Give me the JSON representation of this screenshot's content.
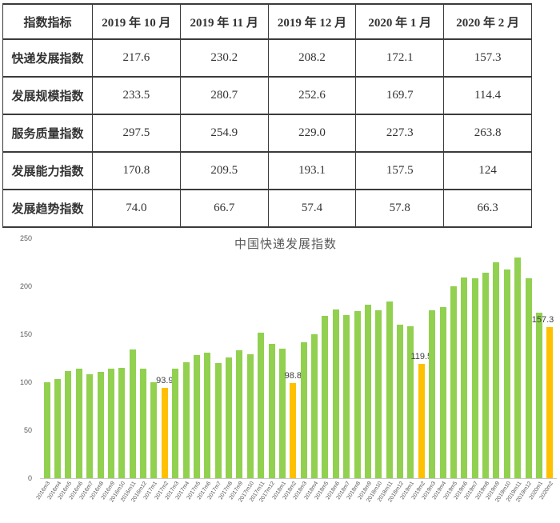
{
  "table": {
    "header": [
      "指数指标",
      "2019 年 10 月",
      "2019 年 11 月",
      "2019 年 12 月",
      "2020 年 1 月",
      "2020 年 2 月"
    ],
    "rows": [
      [
        "快递发展指数",
        "217.6",
        "230.2",
        "208.2",
        "172.1",
        "157.3"
      ],
      [
        "发展规模指数",
        "233.5",
        "280.7",
        "252.6",
        "169.7",
        "114.4"
      ],
      [
        "服务质量指数",
        "297.5",
        "254.9",
        "229.0",
        "227.3",
        "263.8"
      ],
      [
        "发展能力指数",
        "170.8",
        "209.5",
        "193.1",
        "157.5",
        "124"
      ],
      [
        "发展趋势指数",
        "74.0",
        "66.7",
        "57.4",
        "57.8",
        "66.3"
      ]
    ]
  },
  "chart_data": {
    "type": "bar",
    "title": "中国快递发展指数",
    "xlabel": "",
    "ylabel": "",
    "ylim": [
      0,
      250
    ],
    "yticks": [
      0,
      50,
      100,
      150,
      200,
      250
    ],
    "grid": false,
    "legend": "none",
    "bar_color": "#92d050",
    "highlight_color": "#ffc000",
    "categories": [
      "2016m3",
      "2016m4",
      "2016m5",
      "2016m6",
      "2016m7",
      "2016m8",
      "2016m9",
      "2016m10",
      "2016m11",
      "2016m12",
      "2017m1",
      "2017m2",
      "2017m3",
      "2017m4",
      "2017m5",
      "2017m6",
      "2017m7",
      "2017m8",
      "2017m9",
      "2017m10",
      "2017m11",
      "2017m12",
      "2018m1",
      "2018m2",
      "2018m3",
      "2018m4",
      "2018m5",
      "2018m6",
      "2018m7",
      "2018m8",
      "2018m9",
      "2018m10",
      "2018m11",
      "2018m12",
      "2019m1",
      "2019m2",
      "2019m3",
      "2019m4",
      "2019m5",
      "2019m6",
      "2019m7",
      "2019m8",
      "2019m9",
      "2019m10",
      "2019m11",
      "2019m12",
      "2020m1",
      "2020m2"
    ],
    "values": [
      100,
      103,
      112,
      114,
      108,
      111,
      114,
      115,
      134,
      114,
      100,
      93.9,
      114,
      121,
      128,
      131,
      120,
      126,
      133,
      129,
      152,
      140,
      135,
      98.8,
      142,
      150,
      169,
      176,
      170,
      174,
      181,
      175,
      184,
      160,
      158,
      119.5,
      175,
      178,
      200,
      209,
      208,
      214,
      225,
      217.6,
      230.2,
      208.2,
      172.1,
      157.3
    ],
    "highlights": [
      {
        "category": "2017m2",
        "index": 11,
        "label": "93.9"
      },
      {
        "category": "2018m2",
        "index": 23,
        "label": "98.8"
      },
      {
        "category": "2019m2",
        "index": 35,
        "label": "119.5"
      },
      {
        "category": "2020m2",
        "index": 47,
        "label": "157.3"
      }
    ]
  }
}
